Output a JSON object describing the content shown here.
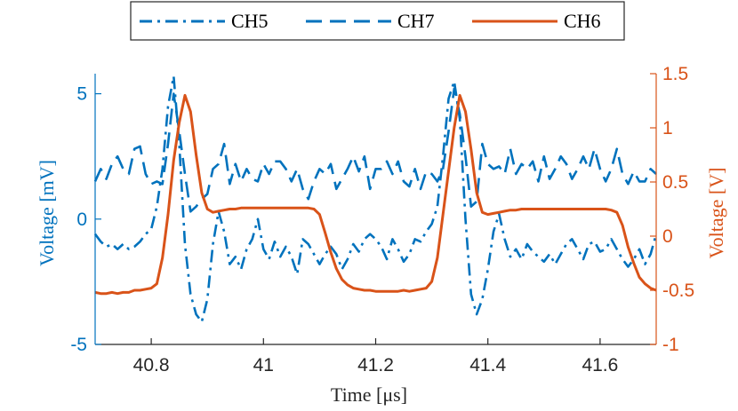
{
  "chart_data": {
    "type": "line",
    "xlabel": "Time [μs]",
    "xlim": [
      40.7,
      41.7
    ],
    "x_ticks": [
      {
        "value": 40.8,
        "label": "40.8"
      },
      {
        "value": 41.0,
        "label": "41"
      },
      {
        "value": 41.2,
        "label": "41.2"
      },
      {
        "value": 41.4,
        "label": "41.4"
      },
      {
        "value": 41.6,
        "label": "41.6"
      }
    ],
    "left_axis": {
      "label": "Voltage [mV]",
      "ylim": [
        -5,
        5.8
      ],
      "ticks": [
        {
          "value": -5,
          "label": "-5"
        },
        {
          "value": 0,
          "label": "0"
        },
        {
          "value": 5,
          "label": "5"
        }
      ],
      "color": "#0072BD"
    },
    "right_axis": {
      "label": "Voltage [V]",
      "ylim": [
        -1,
        1.5
      ],
      "ticks": [
        {
          "value": -1,
          "label": "-1"
        },
        {
          "value": -0.5,
          "label": "-0.5"
        },
        {
          "value": 0,
          "label": "0"
        },
        {
          "value": 0.5,
          "label": "0.5"
        },
        {
          "value": 1,
          "label": "1"
        },
        {
          "value": 1.5,
          "label": "1.5"
        }
      ],
      "color": "#D95319"
    },
    "legend": {
      "placement": "top-center",
      "entries": [
        {
          "name": "CH5",
          "style": "dashdot",
          "color": "#0072BD"
        },
        {
          "name": "CH7",
          "style": "dashed",
          "color": "#0072BD"
        },
        {
          "name": "CH6",
          "style": "solid",
          "color": "#D95319"
        }
      ]
    },
    "series": [
      {
        "name": "CH5",
        "axis": "left",
        "style": "dashdot",
        "color": "#0072BD",
        "x": [
          40.7,
          40.71,
          40.72,
          40.73,
          40.74,
          40.75,
          40.76,
          40.77,
          40.78,
          40.79,
          40.8,
          40.81,
          40.82,
          40.83,
          40.84,
          40.85,
          40.86,
          40.87,
          40.88,
          40.89,
          40.9,
          40.91,
          40.92,
          40.93,
          40.94,
          40.95,
          40.96,
          40.97,
          40.98,
          40.99,
          41.0,
          41.01,
          41.02,
          41.03,
          41.04,
          41.05,
          41.06,
          41.07,
          41.08,
          41.09,
          41.1,
          41.11,
          41.12,
          41.13,
          41.14,
          41.15,
          41.16,
          41.17,
          41.18,
          41.19,
          41.2,
          41.21,
          41.22,
          41.23,
          41.24,
          41.25,
          41.26,
          41.27,
          41.28,
          41.29,
          41.3,
          41.31,
          41.32,
          41.33,
          41.34,
          41.35,
          41.36,
          41.37,
          41.38,
          41.39,
          41.4,
          41.41,
          41.42,
          41.43,
          41.44,
          41.45,
          41.46,
          41.47,
          41.48,
          41.49,
          41.5,
          41.51,
          41.52,
          41.53,
          41.54,
          41.55,
          41.56,
          41.57,
          41.58,
          41.59,
          41.6,
          41.61,
          41.62,
          41.63,
          41.64,
          41.65,
          41.66,
          41.67,
          41.68,
          41.69,
          41.7
        ],
        "values": [
          -0.6,
          -0.9,
          -1.1,
          -1.0,
          -1.2,
          -1.0,
          -1.2,
          -1.1,
          -0.9,
          -0.6,
          -0.4,
          0.5,
          2.0,
          4.5,
          5.7,
          3.0,
          -1.0,
          -3.0,
          -3.8,
          -4.1,
          -3.2,
          -1.0,
          0.3,
          -0.5,
          -1.8,
          -1.5,
          -2.0,
          -1.2,
          -0.8,
          0.0,
          -1.2,
          -1.6,
          -0.9,
          -1.5,
          -1.1,
          -1.5,
          -2.2,
          -0.8,
          -1.0,
          -1.4,
          -1.8,
          -1.4,
          -1.1,
          -1.4,
          -2.0,
          -1.6,
          -1.0,
          -1.3,
          -0.8,
          -0.6,
          -0.8,
          -1.1,
          -1.6,
          -0.8,
          -1.2,
          -1.7,
          -1.4,
          -0.8,
          -0.9,
          -0.5,
          -0.2,
          0.5,
          2.5,
          4.8,
          5.5,
          4.0,
          0.0,
          -3.0,
          -3.8,
          -3.2,
          -2.0,
          -0.5,
          0.2,
          -0.8,
          -1.5,
          -1.2,
          -1.6,
          -1.0,
          -1.3,
          -1.5,
          -1.7,
          -1.4,
          -1.8,
          -1.4,
          -1.0,
          -0.8,
          -1.2,
          -1.6,
          -1.0,
          -0.9,
          -1.3,
          -1.2,
          -0.8,
          -1.2,
          -1.6,
          -1.9,
          -1.6,
          -1.2,
          -1.8,
          -1.4,
          -0.6
        ]
      },
      {
        "name": "CH7",
        "axis": "left",
        "style": "dashed",
        "color": "#0072BD",
        "x": [
          40.7,
          40.71,
          40.72,
          40.73,
          40.74,
          40.75,
          40.76,
          40.77,
          40.78,
          40.79,
          40.8,
          40.81,
          40.82,
          40.83,
          40.84,
          40.85,
          40.86,
          40.87,
          40.88,
          40.89,
          40.9,
          40.91,
          40.92,
          40.93,
          40.94,
          40.95,
          40.96,
          40.97,
          40.98,
          40.99,
          41.0,
          41.01,
          41.02,
          41.03,
          41.04,
          41.05,
          41.06,
          41.07,
          41.08,
          41.09,
          41.1,
          41.11,
          41.12,
          41.13,
          41.14,
          41.15,
          41.16,
          41.17,
          41.18,
          41.19,
          41.2,
          41.21,
          41.22,
          41.23,
          41.24,
          41.25,
          41.26,
          41.27,
          41.28,
          41.29,
          41.3,
          41.31,
          41.32,
          41.33,
          41.34,
          41.35,
          41.36,
          41.37,
          41.38,
          41.39,
          41.4,
          41.41,
          41.42,
          41.43,
          41.44,
          41.45,
          41.46,
          41.47,
          41.48,
          41.49,
          41.5,
          41.51,
          41.52,
          41.53,
          41.54,
          41.55,
          41.56,
          41.57,
          41.58,
          41.59,
          41.6,
          41.61,
          41.62,
          41.63,
          41.64,
          41.65,
          41.66,
          41.67,
          41.68,
          41.69,
          41.7
        ],
        "values": [
          1.5,
          2.0,
          1.6,
          2.2,
          2.5,
          2.0,
          1.8,
          2.8,
          2.9,
          1.8,
          1.4,
          1.5,
          1.4,
          3.0,
          5.0,
          3.5,
          1.8,
          0.3,
          0.5,
          0.8,
          1.0,
          2.0,
          2.2,
          3.0,
          1.4,
          2.2,
          1.5,
          2.0,
          1.6,
          1.5,
          2.2,
          1.8,
          2.3,
          2.3,
          2.0,
          1.5,
          2.0,
          1.2,
          0.8,
          1.5,
          2.0,
          1.8,
          2.2,
          1.2,
          1.6,
          2.0,
          2.5,
          1.9,
          2.5,
          1.2,
          2.0,
          2.0,
          2.3,
          1.8,
          2.3,
          1.5,
          1.3,
          2.0,
          1.2,
          1.9,
          1.8,
          1.5,
          2.0,
          3.5,
          5.2,
          4.2,
          2.5,
          0.5,
          0.7,
          3.0,
          2.2,
          2.0,
          2.1,
          1.8,
          2.8,
          1.8,
          2.2,
          2.0,
          2.3,
          1.5,
          2.5,
          1.6,
          2.0,
          2.5,
          2.2,
          1.6,
          2.0,
          2.5,
          2.0,
          2.8,
          2.0,
          1.5,
          2.0,
          2.8,
          1.8,
          1.4,
          1.9,
          1.5,
          1.5,
          2.0,
          1.8
        ]
      },
      {
        "name": "CH6",
        "axis": "right",
        "style": "solid",
        "color": "#D95319",
        "x": [
          40.7,
          40.71,
          40.72,
          40.73,
          40.74,
          40.75,
          40.76,
          40.77,
          40.78,
          40.79,
          40.8,
          40.81,
          40.82,
          40.83,
          40.84,
          40.85,
          40.86,
          40.87,
          40.88,
          40.89,
          40.9,
          40.91,
          40.92,
          40.93,
          40.94,
          40.95,
          40.96,
          40.97,
          40.98,
          40.99,
          41.0,
          41.01,
          41.02,
          41.03,
          41.04,
          41.05,
          41.06,
          41.07,
          41.08,
          41.09,
          41.1,
          41.11,
          41.12,
          41.13,
          41.14,
          41.15,
          41.16,
          41.17,
          41.18,
          41.19,
          41.2,
          41.21,
          41.22,
          41.23,
          41.24,
          41.25,
          41.26,
          41.27,
          41.28,
          41.29,
          41.3,
          41.31,
          41.32,
          41.33,
          41.34,
          41.35,
          41.36,
          41.37,
          41.38,
          41.39,
          41.4,
          41.41,
          41.42,
          41.43,
          41.44,
          41.45,
          41.46,
          41.47,
          41.48,
          41.49,
          41.5,
          41.51,
          41.52,
          41.53,
          41.54,
          41.55,
          41.56,
          41.57,
          41.58,
          41.59,
          41.6,
          41.61,
          41.62,
          41.63,
          41.64,
          41.65,
          41.66,
          41.67,
          41.68,
          41.69,
          41.7
        ],
        "values": [
          -0.52,
          -0.53,
          -0.53,
          -0.52,
          -0.53,
          -0.52,
          -0.52,
          -0.5,
          -0.5,
          -0.49,
          -0.48,
          -0.44,
          -0.2,
          0.2,
          0.7,
          1.05,
          1.3,
          1.15,
          0.75,
          0.4,
          0.25,
          0.22,
          0.23,
          0.24,
          0.25,
          0.25,
          0.26,
          0.26,
          0.26,
          0.26,
          0.26,
          0.26,
          0.26,
          0.26,
          0.26,
          0.26,
          0.26,
          0.26,
          0.26,
          0.25,
          0.2,
          0.03,
          -0.15,
          -0.3,
          -0.4,
          -0.45,
          -0.48,
          -0.49,
          -0.5,
          -0.5,
          -0.51,
          -0.51,
          -0.51,
          -0.51,
          -0.51,
          -0.5,
          -0.51,
          -0.5,
          -0.49,
          -0.48,
          -0.42,
          -0.2,
          0.2,
          0.6,
          1.0,
          1.3,
          1.15,
          0.8,
          0.4,
          0.22,
          0.2,
          0.21,
          0.22,
          0.23,
          0.24,
          0.24,
          0.25,
          0.25,
          0.25,
          0.25,
          0.25,
          0.25,
          0.25,
          0.25,
          0.25,
          0.25,
          0.25,
          0.25,
          0.25,
          0.25,
          0.25,
          0.25,
          0.24,
          0.22,
          0.1,
          -0.1,
          -0.25,
          -0.38,
          -0.44,
          -0.48,
          -0.5
        ]
      }
    ]
  }
}
